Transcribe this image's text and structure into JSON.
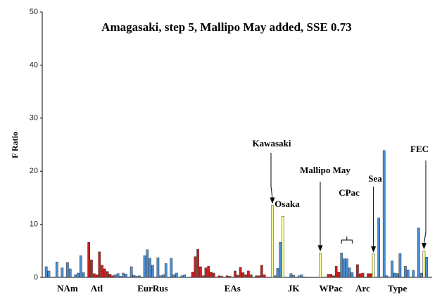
{
  "chart_data": {
    "type": "bar",
    "title": "Amagasaki, step 5, Mallipo May added, SSE 0.73",
    "y_label": "F Ratio",
    "ylim": [
      0,
      50
    ],
    "yticks": [
      0,
      10,
      20,
      30,
      40,
      50
    ],
    "categories": [
      null,
      null,
      null,
      null,
      null,
      null,
      null,
      null,
      null,
      "NAm",
      null,
      null,
      null,
      null,
      null,
      null,
      null,
      null,
      null,
      null,
      "Atl",
      null,
      null,
      null,
      null,
      null,
      null,
      null,
      null,
      null,
      null,
      null,
      null,
      null,
      null,
      null,
      null,
      null,
      null,
      null,
      null,
      "EurRus",
      null,
      null,
      null,
      null,
      null,
      null,
      null,
      null,
      null,
      null,
      null,
      null,
      null,
      null,
      null,
      null,
      null,
      null,
      null,
      null,
      null,
      null,
      null,
      null,
      null,
      null,
      null,
      null,
      null,
      "EAs",
      null,
      null,
      null,
      null,
      null,
      null,
      null,
      null,
      null,
      null,
      null,
      null,
      null,
      null,
      null,
      null,
      null,
      null,
      null,
      null,
      null,
      null,
      "JK",
      null,
      null,
      null,
      null,
      null,
      null,
      null,
      null,
      null,
      null,
      null,
      null,
      null,
      "WPac",
      null,
      null,
      null,
      null,
      null,
      null,
      null,
      null,
      null,
      null,
      null,
      "Arc",
      null,
      null,
      null,
      null,
      null,
      null,
      null,
      null,
      null,
      null,
      null,
      null,
      "Type",
      null,
      null,
      null,
      null,
      null,
      null,
      null,
      null,
      null,
      null,
      null,
      null
    ],
    "values": [
      null,
      2.0,
      1.2,
      null,
      null,
      2.9,
      null,
      1.8,
      null,
      2.8,
      1.6,
      null,
      0.5,
      0.8,
      4.1,
      0.9,
      null,
      6.6,
      3.3,
      0.7,
      0.5,
      4.8,
      2.3,
      1.6,
      1.1,
      0.6,
      0.3,
      0.5,
      0.7,
      0.2,
      0.8,
      0.6,
      null,
      2.0,
      0.4,
      0.2,
      0.3,
      null,
      4.1,
      5.2,
      3.6,
      2.3,
      null,
      3.7,
      0.3,
      0.5,
      2.6,
      null,
      3.6,
      0.5,
      0.8,
      null,
      0.3,
      0.5,
      null,
      null,
      1.0,
      3.9,
      5.3,
      2.0,
      0.3,
      1.8,
      2.1,
      1.0,
      0.8,
      null,
      0.3,
      0.2,
      null,
      0.3,
      0.2,
      null,
      1.2,
      0.4,
      1.9,
      0.9,
      0.5,
      1.2,
      0.5,
      null,
      0.3,
      0.3,
      2.3,
      0.5,
      null,
      null,
      13.6,
      0.3,
      1.7,
      6.6,
      11.5,
      null,
      null,
      0.7,
      0.4,
      null,
      0.3,
      0.5,
      0.1,
      null,
      null,
      null,
      null,
      null,
      4.6,
      null,
      null,
      0.6,
      0.6,
      0.3,
      2.1,
      1.0,
      4.6,
      3.5,
      3.5,
      1.8,
      0.9,
      null,
      2.4,
      0.7,
      0.8,
      null,
      0.7,
      0.7,
      4.4,
      null,
      11.2,
      null,
      23.9,
      0.3,
      null,
      3.1,
      0.8,
      0.7,
      4.5,
      null,
      2.1,
      1.4,
      null,
      1.3,
      null,
      9.3,
      0.8,
      5.0,
      3.8,
      null
    ],
    "colors": [
      null,
      "#4a8fd6",
      "#4a8fd6",
      null,
      null,
      "#4a8fd6",
      null,
      "#4a8fd6",
      null,
      "#4a8fd6",
      "#4a8fd6",
      null,
      "#4a8fd6",
      "#4a8fd6",
      "#4a8fd6",
      "#4a8fd6",
      null,
      "#c8201e",
      "#c8201e",
      "#c8201e",
      "#c8201e",
      "#c8201e",
      "#c8201e",
      "#c8201e",
      "#c8201e",
      "#c8201e",
      "#c8201e",
      "#4a8fd6",
      "#4a8fd6",
      "#4a8fd6",
      "#4a8fd6",
      "#4a8fd6",
      null,
      "#4a8fd6",
      "#4a8fd6",
      "#4a8fd6",
      "#4a8fd6",
      null,
      "#4a8fd6",
      "#4a8fd6",
      "#4a8fd6",
      "#4a8fd6",
      null,
      "#4a8fd6",
      "#4a8fd6",
      "#4a8fd6",
      "#4a8fd6",
      null,
      "#4a8fd6",
      "#4a8fd6",
      "#4a8fd6",
      null,
      "#4a8fd6",
      "#4a8fd6",
      null,
      null,
      "#c8201e",
      "#c8201e",
      "#c8201e",
      "#c8201e",
      "#c8201e",
      "#c8201e",
      "#c8201e",
      "#c8201e",
      "#c8201e",
      null,
      "#c8201e",
      "#c8201e",
      null,
      "#c8201e",
      "#c8201e",
      null,
      "#c8201e",
      "#c8201e",
      "#c8201e",
      "#c8201e",
      "#c8201e",
      "#c8201e",
      "#c8201e",
      null,
      "#c8201e",
      "#c8201e",
      "#c8201e",
      "#c8201e",
      null,
      null,
      "#ffff99",
      "#4a8fd6",
      "#4a8fd6",
      "#4a8fd6",
      "#ffff99",
      null,
      null,
      "#4a8fd6",
      "#4a8fd6",
      null,
      "#4a8fd6",
      "#4a8fd6",
      "#4a8fd6",
      null,
      null,
      null,
      null,
      null,
      "#ffff99",
      null,
      null,
      "#c8201e",
      "#c8201e",
      "#c8201e",
      "#c8201e",
      "#c8201e",
      "#4a8fd6",
      "#4a8fd6",
      "#4a8fd6",
      "#4a8fd6",
      "#4a8fd6",
      null,
      "#c8201e",
      "#c8201e",
      "#c8201e",
      null,
      "#c8201e",
      "#c8201e",
      "#ffff99",
      null,
      "#4a8fd6",
      null,
      "#4a8fd6",
      "#4a8fd6",
      null,
      "#4a8fd6",
      "#4a8fd6",
      "#4a8fd6",
      "#4a8fd6",
      null,
      "#4a8fd6",
      "#4a8fd6",
      null,
      "#4a8fd6",
      null,
      "#4a8fd6",
      "#4a8fd6",
      "#ffff99",
      "#4a8fd6",
      null
    ],
    "annotations": [
      "Kawasaki",
      "Osaka",
      "Mallipo May",
      "CPac",
      "Sea",
      "FEC"
    ]
  }
}
